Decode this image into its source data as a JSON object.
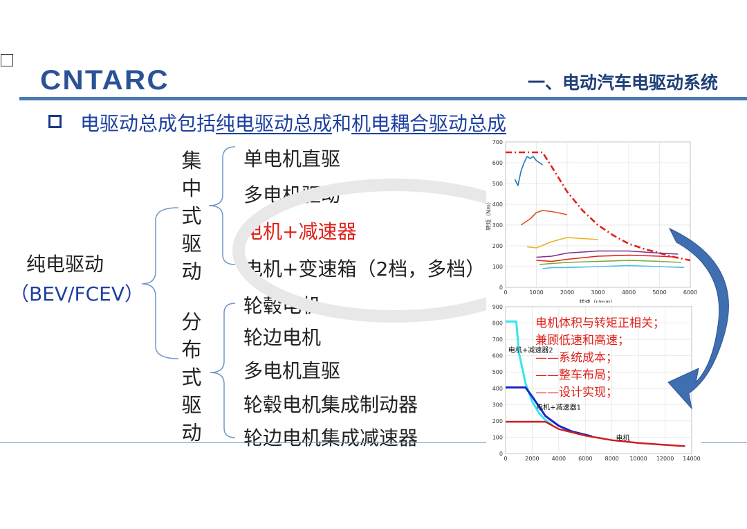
{
  "header": {
    "logo_text": "CNTARC",
    "section_title": "一、电动汽车电驱动系统"
  },
  "headline": {
    "prefix": "电驱动总成包括",
    "link1": "纯电驱动总成",
    "mid": "和",
    "link2": "机电耦合驱动总成"
  },
  "tree": {
    "root_line1": "纯电驱动",
    "root_line2": "（BEV/FCEV）",
    "group1_label": [
      "集",
      "中",
      "式",
      "驱",
      "动"
    ],
    "group1_items": [
      "单电机直驱",
      "多电机驱动",
      "电机+减速器",
      "电机+变速箱（2档，多档）"
    ],
    "group2_label": [
      "分",
      "布",
      "式",
      "驱",
      "动"
    ],
    "group2_items": [
      "轮毂电机",
      "轮边电机",
      "多电机直驱",
      "轮毂电机集成制动器",
      "轮边电机集成减速器"
    ]
  },
  "annotation": {
    "lines": [
      "电机体积与转矩正相关；",
      "兼顾低速和高速；",
      "——系统成本；",
      "——整车布局；",
      "——设计实现；"
    ]
  },
  "colors": {
    "accent_blue": "#1d3fa0",
    "rule_blue": "#4a7ab5",
    "highlight_red": "#e0201a"
  },
  "chart_data": [
    {
      "type": "line",
      "xlabel": "转速（r/min）",
      "ylabel": "转矩（Nm）",
      "xlim": [
        0,
        6000
      ],
      "ylim": [
        0,
        700
      ],
      "xticks": [
        0,
        1000,
        2000,
        3000,
        4000,
        5000,
        6000
      ],
      "yticks": [
        0,
        100,
        200,
        300,
        400,
        500,
        600,
        700
      ],
      "grid": true,
      "series": [
        {
          "color": "#e0201a",
          "dash": true,
          "x": [
            0,
            1200,
            1500,
            2000,
            2500,
            3000,
            3500,
            4000,
            4500,
            5000,
            5500,
            6000
          ],
          "y": [
            650,
            650,
            580,
            460,
            370,
            300,
            250,
            210,
            185,
            165,
            145,
            130
          ]
        },
        {
          "color": "#1f77b4",
          "x": [
            300,
            400,
            500,
            600,
            700,
            800,
            900,
            1000,
            1100,
            1200
          ],
          "y": [
            520,
            490,
            560,
            600,
            630,
            620,
            630,
            610,
            600,
            590
          ]
        },
        {
          "color": "#d9531e",
          "x": [
            500,
            800,
            1000,
            1200,
            1500,
            2000
          ],
          "y": [
            300,
            330,
            360,
            370,
            365,
            350
          ]
        },
        {
          "color": "#edb120",
          "x": [
            700,
            1000,
            1500,
            2000,
            2500,
            3000
          ],
          "y": [
            195,
            190,
            220,
            240,
            235,
            230
          ]
        },
        {
          "color": "#7e2f8e",
          "x": [
            1000,
            1500,
            2000,
            3000,
            4000,
            5000,
            5600
          ],
          "y": [
            145,
            150,
            165,
            175,
            175,
            165,
            160
          ]
        },
        {
          "color": "#e0201a",
          "x": [
            1000,
            1500,
            2000,
            3000,
            4000,
            5000,
            5600
          ],
          "y": [
            130,
            125,
            135,
            150,
            155,
            150,
            145
          ]
        },
        {
          "color": "#77ac30",
          "x": [
            1100,
            1500,
            2000,
            3000,
            4000,
            5000,
            5700
          ],
          "y": [
            110,
            115,
            120,
            125,
            130,
            125,
            120
          ]
        },
        {
          "color": "#4dbeee",
          "x": [
            1200,
            1500,
            2000,
            3000,
            4000,
            5000,
            5800
          ],
          "y": [
            90,
            95,
            95,
            100,
            105,
            100,
            95
          ]
        }
      ]
    },
    {
      "type": "line",
      "xlim": [
        0,
        14000
      ],
      "ylim": [
        0,
        900
      ],
      "xticks": [
        0,
        2000,
        4000,
        6000,
        8000,
        10000,
        12000,
        14000
      ],
      "yticks": [
        0,
        100,
        200,
        300,
        400,
        500,
        600,
        700,
        800,
        900
      ],
      "grid": true,
      "labels": {
        "reducer2": "电机+减速器2",
        "reducer1": "电机+减速器1",
        "motor": "电机"
      },
      "series": [
        {
          "name": "电机+减速器2",
          "color": "#33e6f0",
          "width": 3,
          "x": [
            0,
            800,
            1000,
            1500,
            2000,
            2500,
            3000,
            3500
          ],
          "y": [
            810,
            810,
            620,
            430,
            320,
            250,
            205,
            175
          ]
        },
        {
          "name": "电机+减速器1",
          "color": "#1b24c9",
          "width": 3,
          "x": [
            0,
            1500,
            2000,
            3000,
            4000,
            5000,
            6500
          ],
          "y": [
            405,
            405,
            350,
            230,
            170,
            135,
            105
          ]
        },
        {
          "name": "电机",
          "color": "#cc1f1f",
          "width": 2.5,
          "x": [
            0,
            3000,
            4000,
            6000,
            8000,
            10000,
            12000,
            13500
          ],
          "y": [
            195,
            195,
            150,
            110,
            82,
            65,
            53,
            45
          ]
        }
      ]
    }
  ]
}
